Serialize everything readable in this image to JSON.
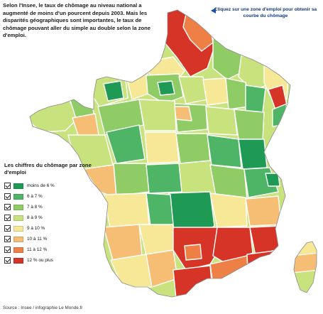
{
  "intro_text": "Selon l'Insee, le taux de chômage au niveau national a augmenté de moins d'un pourcent depuis 2003. Mais les disparités géographiques sont importantes, le taux de chômage pouvant aller du simple au double selon la zone d'emploi.",
  "hint_text": "Cliquez sur une zone d'emploi pour obtenir sa courbe du chômage",
  "legend": {
    "title": "Les chiffres du chômage par zone d'emploi",
    "items": [
      {
        "label": "moins de 6 %",
        "color": "#1e9a55",
        "checked": true
      },
      {
        "label": "6 à 7 %",
        "color": "#4db565",
        "checked": true
      },
      {
        "label": "7 à 8 %",
        "color": "#8fcc66",
        "checked": true
      },
      {
        "label": "8 à 9 %",
        "color": "#c8e27e",
        "checked": true
      },
      {
        "label": "9 à 10 %",
        "color": "#f6e896",
        "checked": true
      },
      {
        "label": "10 à 11 %",
        "color": "#f6bd74",
        "checked": true
      },
      {
        "label": "11 à 12 %",
        "color": "#ee8046",
        "checked": true
      },
      {
        "label": "12 % ou plus",
        "color": "#d63427",
        "checked": true
      }
    ]
  },
  "source_text": "Source : Insee / infographie Le Monde.fr",
  "colors": {
    "hint_arrow": "#1d4fa0",
    "border": "#ffffff"
  }
}
